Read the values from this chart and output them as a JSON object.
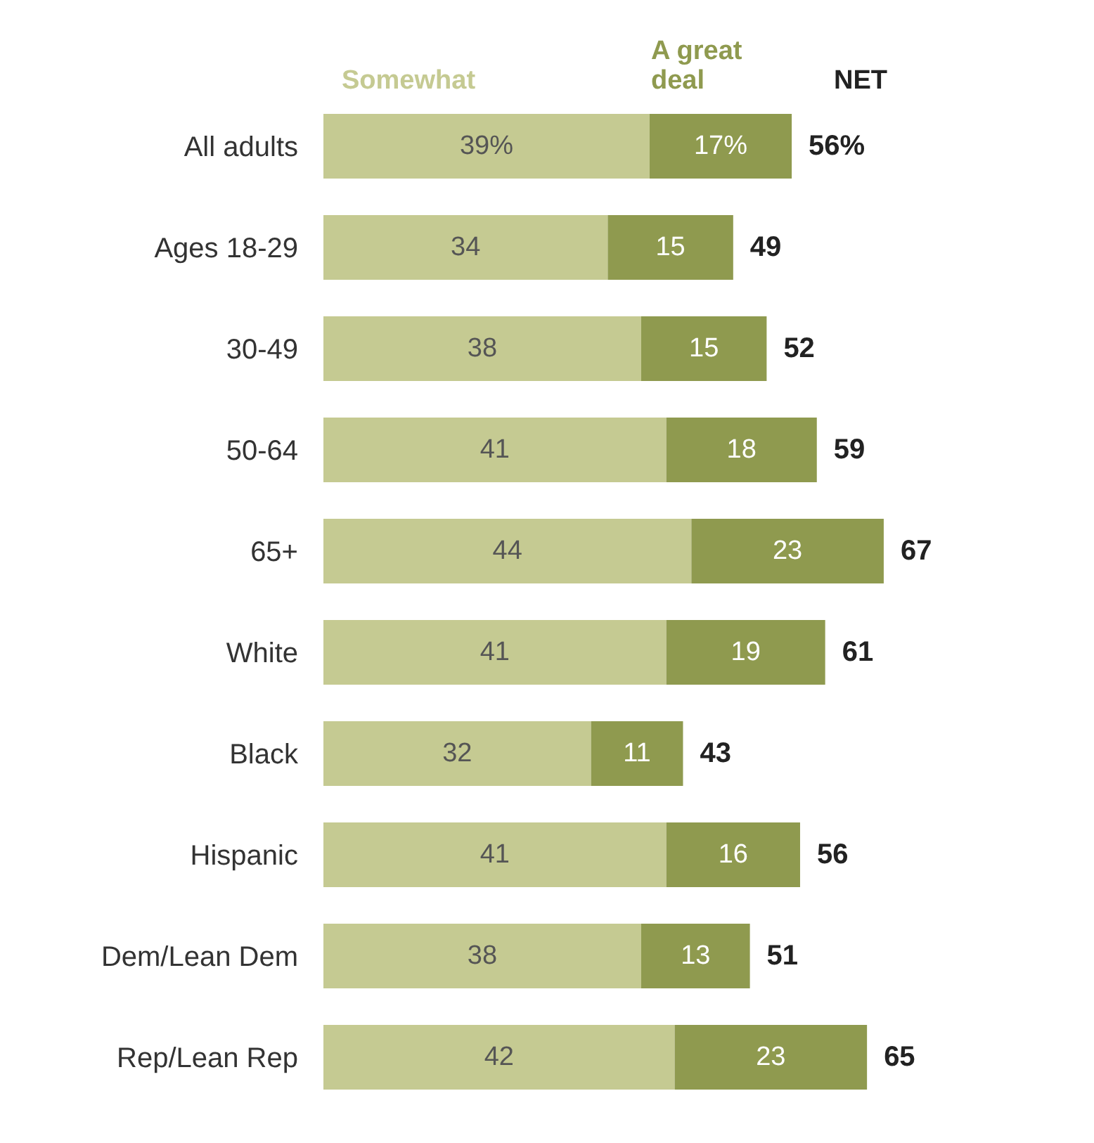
{
  "chart_data": {
    "type": "bar",
    "orientation": "horizontal",
    "stacked": true,
    "legend": "top",
    "annotations": [
      "NET"
    ],
    "categories": [
      "All adults",
      "Ages 18-29",
      "30-49",
      "50-64",
      "65+",
      "White",
      "Black",
      "Hispanic",
      "Dem/Lean Dem",
      "Rep/Lean Rep"
    ],
    "series": [
      {
        "name": "Somewhat",
        "color": "#c5ca92",
        "values": [
          39,
          34,
          38,
          41,
          44,
          41,
          32,
          41,
          38,
          42
        ],
        "value_labels": [
          "39%",
          "34",
          "38",
          "41",
          "44",
          "41",
          "32",
          "41",
          "38",
          "42"
        ]
      },
      {
        "name": "A great deal",
        "color": "#8f9a4f",
        "values": [
          17,
          15,
          15,
          18,
          23,
          19,
          11,
          16,
          13,
          23
        ],
        "value_labels": [
          "17%",
          "15",
          "15",
          "18",
          "23",
          "19",
          "11",
          "16",
          "13",
          "23"
        ]
      }
    ],
    "totals": [
      "56%",
      "49",
      "52",
      "59",
      "67",
      "61",
      "43",
      "56",
      "51",
      "65"
    ]
  }
}
